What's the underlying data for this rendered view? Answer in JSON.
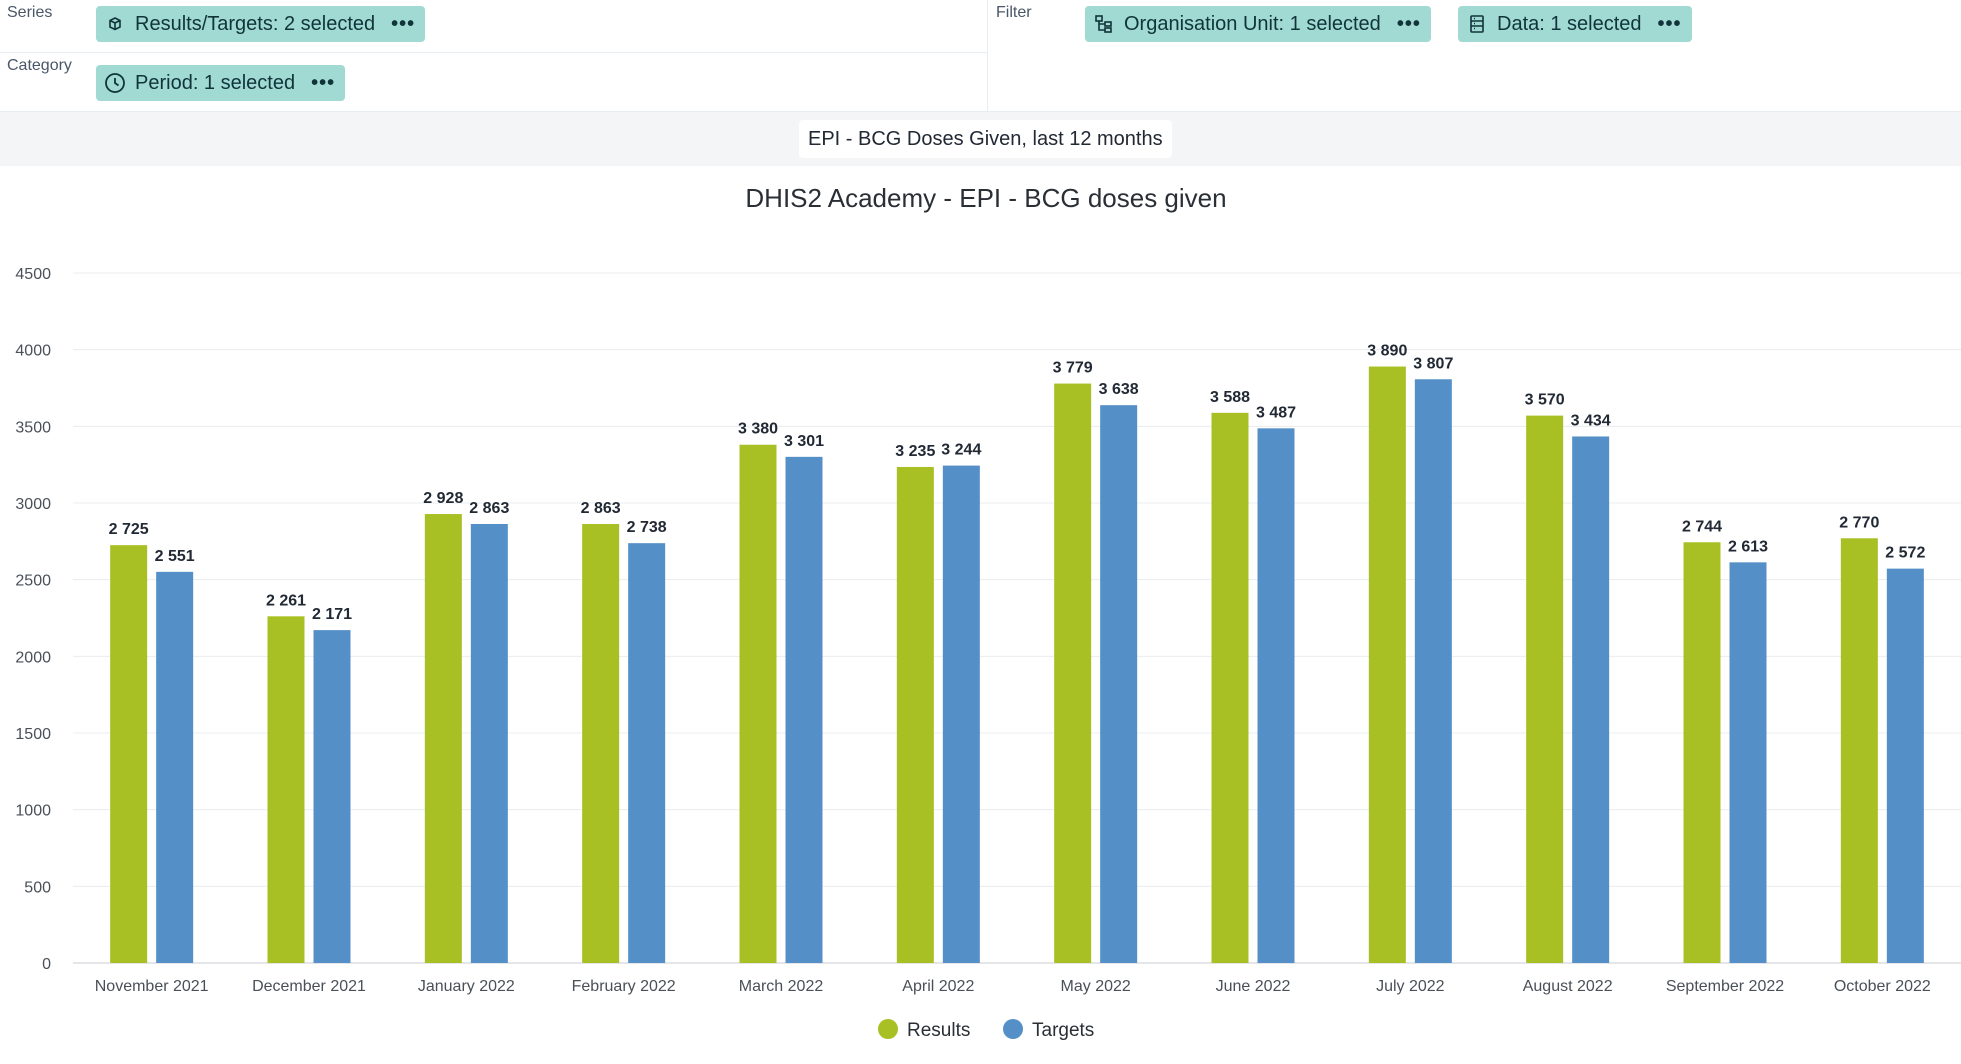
{
  "layout": {
    "series": {
      "label": "Series",
      "chip": {
        "label": "Results/Targets: 2 selected",
        "icon": "cube-icon"
      }
    },
    "category": {
      "label": "Category",
      "chip": {
        "label": "Period: 1 selected",
        "icon": "clock-icon"
      }
    },
    "filter": {
      "label": "Filter",
      "chips": [
        {
          "label": "Organisation Unit: 1 selected",
          "icon": "org-tree-icon"
        },
        {
          "label": "Data: 1 selected",
          "icon": "database-icon"
        }
      ]
    },
    "more_icon": "more-dots-icon"
  },
  "visualization_title": "EPI - BCG Doses Given, last 12 months",
  "colors": {
    "results": "#a8c023",
    "targets": "#5490c7",
    "chip": "#a0dad2"
  },
  "chart_data": {
    "type": "bar",
    "title": "DHIS2 Academy - EPI - BCG doses given",
    "xlabel": "",
    "ylabel": "",
    "ylim": [
      0,
      4500
    ],
    "yticks": [
      "0",
      "500",
      "1000",
      "1500",
      "2000",
      "2500",
      "3000",
      "3500",
      "4000",
      "4500"
    ],
    "grid": true,
    "legend_position": "bottom",
    "categories": [
      "November 2021",
      "December 2021",
      "January 2022",
      "February 2022",
      "March 2022",
      "April 2022",
      "May 2022",
      "June 2022",
      "July 2022",
      "August 2022",
      "September 2022",
      "October 2022"
    ],
    "series": [
      {
        "name": "Results",
        "color": "#a8c023",
        "values": [
          2725,
          2261,
          2928,
          2863,
          3380,
          3235,
          3779,
          3588,
          3890,
          3570,
          2744,
          2770
        ],
        "labels": [
          "2 725",
          "2 261",
          "2 928",
          "2 863",
          "3 380",
          "3 235",
          "3 779",
          "3 588",
          "3 890",
          "3 570",
          "2 744",
          "2 770"
        ]
      },
      {
        "name": "Targets",
        "color": "#5490c7",
        "values": [
          2551,
          2171,
          2863,
          2738,
          3301,
          3244,
          3638,
          3487,
          3807,
          3434,
          2613,
          2572
        ],
        "labels": [
          "2 551",
          "2 171",
          "2 863",
          "2 738",
          "3 301",
          "3 244",
          "3 638",
          "3 487",
          "3 807",
          "3 434",
          "2 613",
          "2 572"
        ]
      }
    ]
  }
}
